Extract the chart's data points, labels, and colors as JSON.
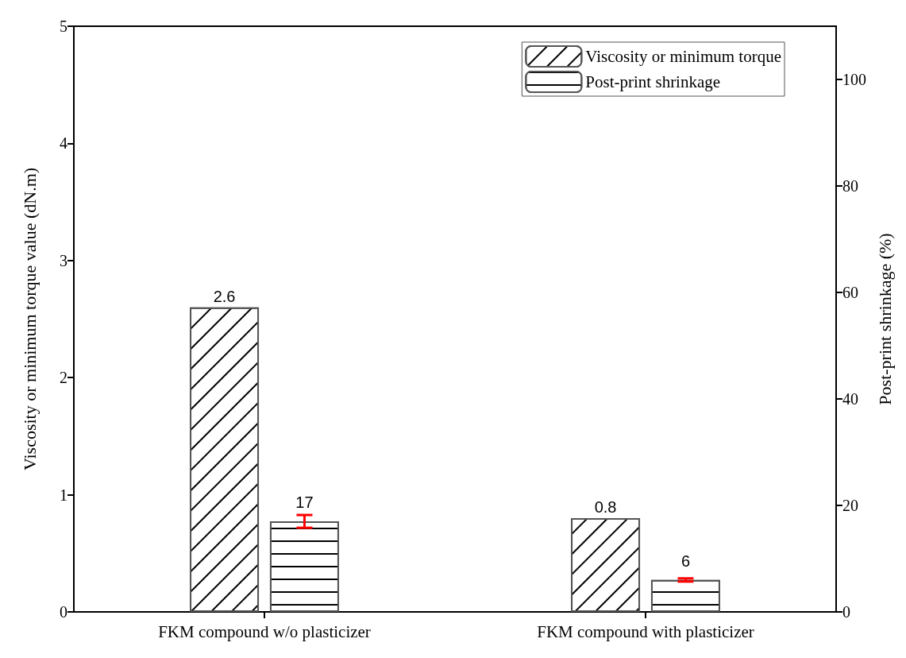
{
  "chart_data": {
    "type": "bar",
    "categories": [
      "FKM compound w/o plasticizer",
      "FKM compound with plasticizer"
    ],
    "series": [
      {
        "name": "Viscosity or minimum torque",
        "color": "#ffffff",
        "values": [
          2.6,
          0.8
        ]
      },
      {
        "name": "Post-print shrinkage",
        "color": "#ffffff",
        "values": [
          17,
          6
        ],
        "axis": "y2",
        "errors": [
          1.2,
          0.3
        ]
      }
    ],
    "ylabel": "Viscosity or minimum torque value (dN.m)",
    "y2label": "Post-print shrinkage (%)",
    "ylim": [
      0,
      5
    ],
    "yticks": [
      0,
      1,
      2,
      3,
      4,
      5
    ],
    "y2lim": [
      0,
      110
    ],
    "y2ticks": [
      0,
      20,
      40,
      60,
      80,
      100
    ],
    "data_labels": true,
    "legend": "top right",
    "grid": false
  }
}
